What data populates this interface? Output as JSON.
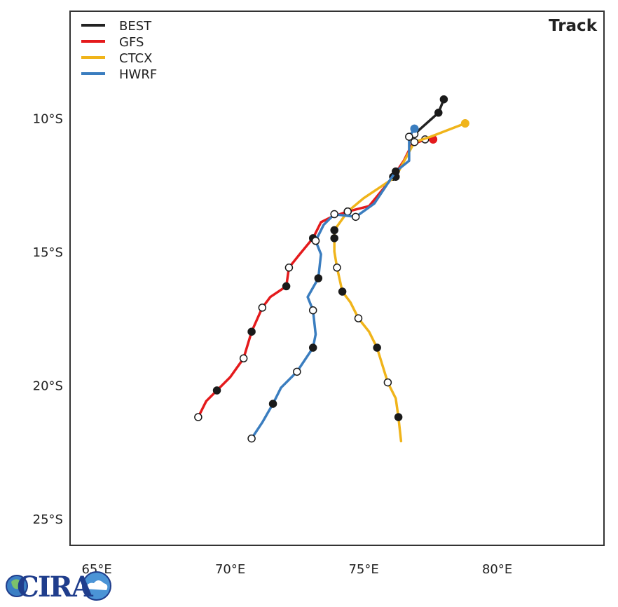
{
  "chart_data": {
    "type": "line",
    "title": "Track",
    "xlim": [
      64.0,
      84.0
    ],
    "ylim": [
      -26.0,
      -6.0
    ],
    "x_ticks": [
      {
        "value": 65,
        "label": "65°E"
      },
      {
        "value": 70,
        "label": "70°E"
      },
      {
        "value": 75,
        "label": "75°E"
      },
      {
        "value": 80,
        "label": "80°E"
      }
    ],
    "y_ticks": [
      {
        "value": -10,
        "label": "10°S"
      },
      {
        "value": -15,
        "label": "15°S"
      },
      {
        "value": -20,
        "label": "20°S"
      },
      {
        "value": -25,
        "label": "25°S"
      }
    ],
    "grid": false,
    "legend_position": "top-left",
    "series": [
      {
        "name": "BEST",
        "color": "#222222",
        "points": [
          {
            "lon": 78.0,
            "lat": -9.3,
            "marker": "filled"
          },
          {
            "lon": 77.8,
            "lat": -9.8,
            "marker": "filled"
          },
          {
            "lon": 76.9,
            "lat": -10.6,
            "marker": "open"
          }
        ]
      },
      {
        "name": "GFS",
        "color": "#e41a1c",
        "points": [
          {
            "lon": 77.6,
            "lat": -10.8,
            "marker": "filled"
          },
          {
            "lon": 77.3,
            "lat": -10.8,
            "marker": "open"
          },
          {
            "lon": 76.8,
            "lat": -11.0,
            "marker": "none"
          },
          {
            "lon": 76.5,
            "lat": -11.6,
            "marker": "none"
          },
          {
            "lon": 76.1,
            "lat": -12.2,
            "marker": "filled"
          },
          {
            "lon": 75.2,
            "lat": -13.3,
            "marker": "none"
          },
          {
            "lon": 74.4,
            "lat": -13.5,
            "marker": "open"
          },
          {
            "lon": 73.8,
            "lat": -13.7,
            "marker": "none"
          },
          {
            "lon": 73.4,
            "lat": -13.9,
            "marker": "none"
          },
          {
            "lon": 73.1,
            "lat": -14.5,
            "marker": "filled"
          },
          {
            "lon": 72.6,
            "lat": -15.1,
            "marker": "none"
          },
          {
            "lon": 72.2,
            "lat": -15.6,
            "marker": "open"
          },
          {
            "lon": 72.1,
            "lat": -16.3,
            "marker": "filled"
          },
          {
            "lon": 71.5,
            "lat": -16.7,
            "marker": "none"
          },
          {
            "lon": 71.2,
            "lat": -17.1,
            "marker": "open"
          },
          {
            "lon": 70.8,
            "lat": -18.0,
            "marker": "filled"
          },
          {
            "lon": 70.5,
            "lat": -19.0,
            "marker": "open"
          },
          {
            "lon": 70.0,
            "lat": -19.7,
            "marker": "none"
          },
          {
            "lon": 69.5,
            "lat": -20.2,
            "marker": "filled"
          },
          {
            "lon": 69.1,
            "lat": -20.6,
            "marker": "none"
          },
          {
            "lon": 68.8,
            "lat": -21.2,
            "marker": "open"
          }
        ]
      },
      {
        "name": "CTCX",
        "color": "#f0b41a",
        "points": [
          {
            "lon": 78.8,
            "lat": -10.2,
            "marker": "filled"
          },
          {
            "lon": 77.5,
            "lat": -10.7,
            "marker": "none"
          },
          {
            "lon": 76.9,
            "lat": -10.9,
            "marker": "open"
          },
          {
            "lon": 76.2,
            "lat": -12.2,
            "marker": "filled"
          },
          {
            "lon": 75.0,
            "lat": -13.0,
            "marker": "none"
          },
          {
            "lon": 74.4,
            "lat": -13.5,
            "marker": "open"
          },
          {
            "lon": 73.9,
            "lat": -14.2,
            "marker": "filled"
          },
          {
            "lon": 73.9,
            "lat": -14.5,
            "marker": "filled"
          },
          {
            "lon": 73.9,
            "lat": -15.0,
            "marker": "none"
          },
          {
            "lon": 74.0,
            "lat": -15.6,
            "marker": "open"
          },
          {
            "lon": 74.2,
            "lat": -16.5,
            "marker": "filled"
          },
          {
            "lon": 74.5,
            "lat": -16.9,
            "marker": "none"
          },
          {
            "lon": 74.8,
            "lat": -17.5,
            "marker": "open"
          },
          {
            "lon": 75.2,
            "lat": -18.0,
            "marker": "none"
          },
          {
            "lon": 75.5,
            "lat": -18.6,
            "marker": "filled"
          },
          {
            "lon": 75.9,
            "lat": -19.9,
            "marker": "open"
          },
          {
            "lon": 76.2,
            "lat": -20.5,
            "marker": "none"
          },
          {
            "lon": 76.3,
            "lat": -21.2,
            "marker": "filled"
          },
          {
            "lon": 76.4,
            "lat": -22.1,
            "marker": "none"
          }
        ]
      },
      {
        "name": "HWRF",
        "color": "#3a7dbf",
        "points": [
          {
            "lon": 76.9,
            "lat": -10.4,
            "marker": "filled"
          },
          {
            "lon": 76.7,
            "lat": -10.7,
            "marker": "open"
          },
          {
            "lon": 76.7,
            "lat": -11.6,
            "marker": "none"
          },
          {
            "lon": 76.2,
            "lat": -12.0,
            "marker": "filled"
          },
          {
            "lon": 75.4,
            "lat": -13.2,
            "marker": "none"
          },
          {
            "lon": 74.7,
            "lat": -13.7,
            "marker": "open"
          },
          {
            "lon": 73.9,
            "lat": -13.6,
            "marker": "open"
          },
          {
            "lon": 73.5,
            "lat": -14.0,
            "marker": "none"
          },
          {
            "lon": 73.2,
            "lat": -14.6,
            "marker": "open"
          },
          {
            "lon": 73.4,
            "lat": -15.1,
            "marker": "none"
          },
          {
            "lon": 73.3,
            "lat": -16.0,
            "marker": "filled"
          },
          {
            "lon": 72.9,
            "lat": -16.7,
            "marker": "none"
          },
          {
            "lon": 73.1,
            "lat": -17.2,
            "marker": "open"
          },
          {
            "lon": 73.2,
            "lat": -18.1,
            "marker": "none"
          },
          {
            "lon": 73.1,
            "lat": -18.6,
            "marker": "filled"
          },
          {
            "lon": 72.5,
            "lat": -19.5,
            "marker": "open"
          },
          {
            "lon": 71.9,
            "lat": -20.1,
            "marker": "none"
          },
          {
            "lon": 71.6,
            "lat": -20.7,
            "marker": "filled"
          },
          {
            "lon": 71.2,
            "lat": -21.4,
            "marker": "none"
          },
          {
            "lon": 70.8,
            "lat": -22.0,
            "marker": "open"
          }
        ]
      }
    ]
  },
  "logo": {
    "name": "cira-logo",
    "text": "CIRA"
  }
}
